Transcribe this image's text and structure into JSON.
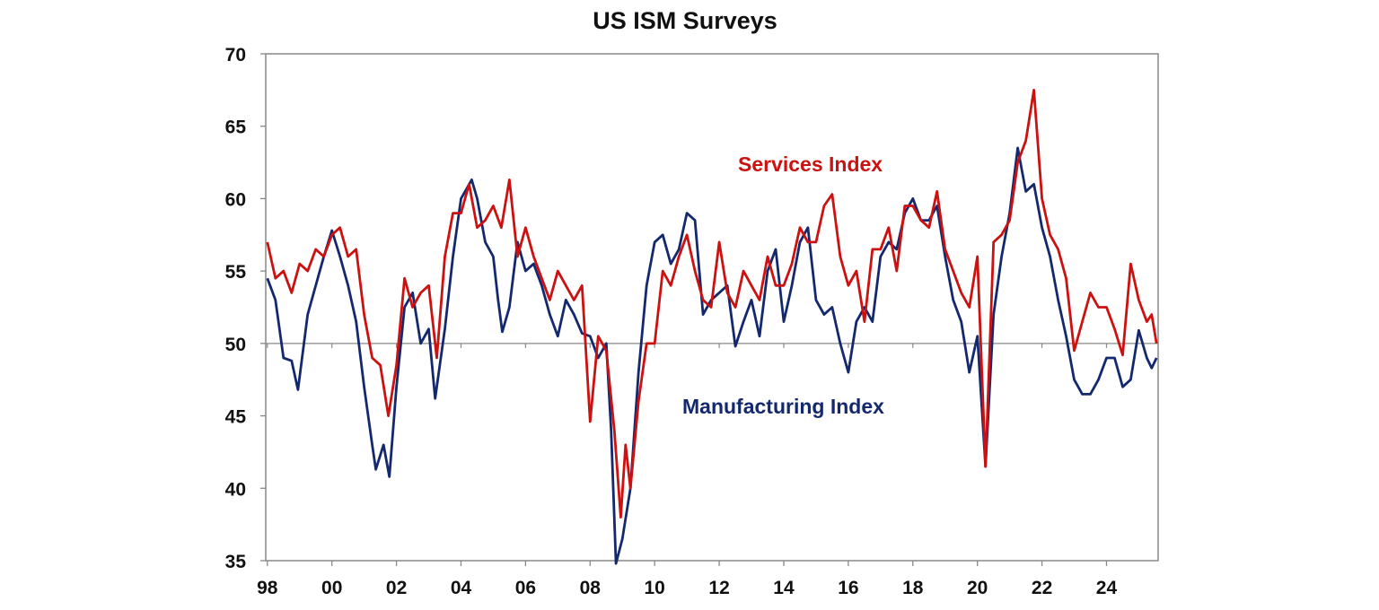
{
  "chart_data": {
    "type": "line",
    "title": "US ISM Surveys",
    "xlabel": "",
    "ylabel": "",
    "xlim": [
      1997.95,
      2025.6
    ],
    "ylim": [
      35,
      70
    ],
    "y_ticks": [
      35,
      40,
      45,
      50,
      55,
      60,
      65,
      70
    ],
    "x_ticks": [
      {
        "value": 1998,
        "label": "98"
      },
      {
        "value": 2000,
        "label": "00"
      },
      {
        "value": 2002,
        "label": "02"
      },
      {
        "value": 2004,
        "label": "04"
      },
      {
        "value": 2006,
        "label": "06"
      },
      {
        "value": 2008,
        "label": "08"
      },
      {
        "value": 2010,
        "label": "10"
      },
      {
        "value": 2012,
        "label": "12"
      },
      {
        "value": 2014,
        "label": "14"
      },
      {
        "value": 2016,
        "label": "16"
      },
      {
        "value": 2018,
        "label": "18"
      },
      {
        "value": 2020,
        "label": "20"
      },
      {
        "value": 2022,
        "label": "22"
      },
      {
        "value": 2024,
        "label": "24"
      }
    ],
    "reference_line": 50,
    "grid": false,
    "series": [
      {
        "name": "Services Index",
        "color": "#cc1111",
        "points": [
          [
            1998.0,
            57
          ],
          [
            1998.25,
            54.5
          ],
          [
            1998.5,
            55
          ],
          [
            1998.75,
            53.5
          ],
          [
            1999.0,
            55.5
          ],
          [
            1999.25,
            55
          ],
          [
            1999.5,
            56.5
          ],
          [
            1999.75,
            56
          ],
          [
            2000.0,
            57.5
          ],
          [
            2000.25,
            58
          ],
          [
            2000.5,
            56
          ],
          [
            2000.75,
            56.5
          ],
          [
            2001.0,
            52
          ],
          [
            2001.25,
            49
          ],
          [
            2001.5,
            48.5
          ],
          [
            2001.75,
            45
          ],
          [
            2002.0,
            48.5
          ],
          [
            2002.25,
            54.5
          ],
          [
            2002.5,
            52.5
          ],
          [
            2002.75,
            53.5
          ],
          [
            2003.0,
            54
          ],
          [
            2003.25,
            49
          ],
          [
            2003.5,
            56
          ],
          [
            2003.75,
            59
          ],
          [
            2004.0,
            59
          ],
          [
            2004.25,
            61
          ],
          [
            2004.5,
            58
          ],
          [
            2004.75,
            58.5
          ],
          [
            2005.0,
            59.5
          ],
          [
            2005.25,
            58
          ],
          [
            2005.5,
            61.3
          ],
          [
            2005.75,
            56
          ],
          [
            2006.0,
            58
          ],
          [
            2006.25,
            56
          ],
          [
            2006.5,
            54.5
          ],
          [
            2006.75,
            53
          ],
          [
            2007.0,
            55
          ],
          [
            2007.25,
            54
          ],
          [
            2007.5,
            53
          ],
          [
            2007.75,
            54
          ],
          [
            2008.0,
            44.6
          ],
          [
            2008.25,
            50.5
          ],
          [
            2008.5,
            49.5
          ],
          [
            2008.75,
            44
          ],
          [
            2008.95,
            38
          ],
          [
            2009.1,
            43
          ],
          [
            2009.25,
            40
          ],
          [
            2009.5,
            46
          ],
          [
            2009.75,
            50
          ],
          [
            2010.0,
            50
          ],
          [
            2010.25,
            55
          ],
          [
            2010.5,
            54
          ],
          [
            2010.75,
            56
          ],
          [
            2011.0,
            57.5
          ],
          [
            2011.25,
            55
          ],
          [
            2011.5,
            53
          ],
          [
            2011.75,
            52.5
          ],
          [
            2012.0,
            57
          ],
          [
            2012.25,
            53.5
          ],
          [
            2012.5,
            52.5
          ],
          [
            2012.75,
            55
          ],
          [
            2013.0,
            54
          ],
          [
            2013.25,
            53
          ],
          [
            2013.5,
            56
          ],
          [
            2013.75,
            54
          ],
          [
            2014.0,
            54
          ],
          [
            2014.25,
            55.5
          ],
          [
            2014.5,
            58
          ],
          [
            2014.75,
            57
          ],
          [
            2015.0,
            57
          ],
          [
            2015.25,
            59.5
          ],
          [
            2015.5,
            60.3
          ],
          [
            2015.75,
            56
          ],
          [
            2016.0,
            54
          ],
          [
            2016.25,
            55
          ],
          [
            2016.5,
            51.5
          ],
          [
            2016.75,
            56.5
          ],
          [
            2017.0,
            56.5
          ],
          [
            2017.25,
            58
          ],
          [
            2017.5,
            55
          ],
          [
            2017.75,
            59.5
          ],
          [
            2018.0,
            59.5
          ],
          [
            2018.25,
            58.5
          ],
          [
            2018.5,
            58
          ],
          [
            2018.75,
            60.5
          ],
          [
            2019.0,
            56.5
          ],
          [
            2019.25,
            55
          ],
          [
            2019.5,
            53.5
          ],
          [
            2019.75,
            52.5
          ],
          [
            2020.0,
            56
          ],
          [
            2020.25,
            41.5
          ],
          [
            2020.5,
            57
          ],
          [
            2020.75,
            57.5
          ],
          [
            2021.0,
            58.5
          ],
          [
            2021.25,
            62.5
          ],
          [
            2021.5,
            64
          ],
          [
            2021.75,
            67.5
          ],
          [
            2022.0,
            60
          ],
          [
            2022.25,
            57.5
          ],
          [
            2022.5,
            56.5
          ],
          [
            2022.75,
            54.5
          ],
          [
            2023.0,
            49.5
          ],
          [
            2023.25,
            51.5
          ],
          [
            2023.5,
            53.5
          ],
          [
            2023.75,
            52.5
          ],
          [
            2024.0,
            52.5
          ],
          [
            2024.25,
            51
          ],
          [
            2024.5,
            49.2
          ],
          [
            2024.75,
            55.5
          ],
          [
            2025.0,
            53
          ],
          [
            2025.25,
            51.5
          ],
          [
            2025.4,
            52
          ],
          [
            2025.55,
            50
          ]
        ]
      },
      {
        "name": "Manufacturing Index",
        "color": "#14286e",
        "points": [
          [
            1998.0,
            54.5
          ],
          [
            1998.25,
            53
          ],
          [
            1998.5,
            49
          ],
          [
            1998.75,
            48.8
          ],
          [
            1998.95,
            46.8
          ],
          [
            1999.25,
            52
          ],
          [
            1999.5,
            54
          ],
          [
            1999.75,
            56
          ],
          [
            2000.0,
            57.8
          ],
          [
            2000.25,
            56
          ],
          [
            2000.5,
            54
          ],
          [
            2000.75,
            51.5
          ],
          [
            2001.0,
            47
          ],
          [
            2001.25,
            43
          ],
          [
            2001.36,
            41.3
          ],
          [
            2001.6,
            43
          ],
          [
            2001.78,
            40.8
          ],
          [
            2002.0,
            47
          ],
          [
            2002.25,
            52.5
          ],
          [
            2002.5,
            53.5
          ],
          [
            2002.75,
            50
          ],
          [
            2003.0,
            51
          ],
          [
            2003.2,
            46.2
          ],
          [
            2003.5,
            51
          ],
          [
            2003.75,
            56
          ],
          [
            2004.0,
            60
          ],
          [
            2004.33,
            61.3
          ],
          [
            2004.5,
            60
          ],
          [
            2004.75,
            57
          ],
          [
            2005.0,
            56
          ],
          [
            2005.15,
            53
          ],
          [
            2005.28,
            50.8
          ],
          [
            2005.5,
            52.5
          ],
          [
            2005.75,
            57
          ],
          [
            2006.0,
            55
          ],
          [
            2006.25,
            55.5
          ],
          [
            2006.5,
            54
          ],
          [
            2006.75,
            52
          ],
          [
            2007.0,
            50.5
          ],
          [
            2007.25,
            53
          ],
          [
            2007.5,
            52
          ],
          [
            2007.75,
            50.7
          ],
          [
            2008.0,
            50.5
          ],
          [
            2008.25,
            49
          ],
          [
            2008.5,
            50
          ],
          [
            2008.65,
            44
          ],
          [
            2008.8,
            34.8
          ],
          [
            2009.0,
            36.5
          ],
          [
            2009.25,
            40
          ],
          [
            2009.5,
            48
          ],
          [
            2009.75,
            54
          ],
          [
            2010.0,
            57
          ],
          [
            2010.25,
            57.5
          ],
          [
            2010.5,
            55.5
          ],
          [
            2010.75,
            56.5
          ],
          [
            2011.0,
            59
          ],
          [
            2011.25,
            58.5
          ],
          [
            2011.5,
            52
          ],
          [
            2011.75,
            53
          ],
          [
            2012.0,
            53.5
          ],
          [
            2012.25,
            54
          ],
          [
            2012.5,
            49.8
          ],
          [
            2012.75,
            51.5
          ],
          [
            2013.0,
            53
          ],
          [
            2013.25,
            50.5
          ],
          [
            2013.5,
            55
          ],
          [
            2013.75,
            56.5
          ],
          [
            2014.0,
            51.5
          ],
          [
            2014.25,
            54
          ],
          [
            2014.5,
            57
          ],
          [
            2014.75,
            58
          ],
          [
            2015.0,
            53
          ],
          [
            2015.25,
            52
          ],
          [
            2015.5,
            52.5
          ],
          [
            2015.75,
            50
          ],
          [
            2016.0,
            48
          ],
          [
            2016.25,
            51.5
          ],
          [
            2016.5,
            52.5
          ],
          [
            2016.75,
            51.5
          ],
          [
            2017.0,
            56
          ],
          [
            2017.25,
            57
          ],
          [
            2017.5,
            56.5
          ],
          [
            2017.75,
            59
          ],
          [
            2018.0,
            60
          ],
          [
            2018.25,
            58.5
          ],
          [
            2018.5,
            58.5
          ],
          [
            2018.75,
            59.5
          ],
          [
            2019.0,
            56
          ],
          [
            2019.25,
            53
          ],
          [
            2019.5,
            51.5
          ],
          [
            2019.75,
            48
          ],
          [
            2020.0,
            50.5
          ],
          [
            2020.25,
            41.5
          ],
          [
            2020.5,
            52
          ],
          [
            2020.75,
            56
          ],
          [
            2021.0,
            59
          ],
          [
            2021.25,
            63.5
          ],
          [
            2021.5,
            60.5
          ],
          [
            2021.75,
            61
          ],
          [
            2022.0,
            58
          ],
          [
            2022.25,
            56
          ],
          [
            2022.5,
            53
          ],
          [
            2022.75,
            50.5
          ],
          [
            2023.0,
            47.5
          ],
          [
            2023.25,
            46.5
          ],
          [
            2023.5,
            46.5
          ],
          [
            2023.75,
            47.5
          ],
          [
            2024.0,
            49
          ],
          [
            2024.25,
            49
          ],
          [
            2024.5,
            47
          ],
          [
            2024.75,
            47.5
          ],
          [
            2025.0,
            50.9
          ],
          [
            2025.25,
            49
          ],
          [
            2025.4,
            48.3
          ],
          [
            2025.55,
            49
          ]
        ]
      }
    ],
    "annotations": [
      {
        "text": "Services Index",
        "series": "Services Index"
      },
      {
        "text": "Manufacturing Index",
        "series": "Manufacturing Index"
      }
    ]
  }
}
